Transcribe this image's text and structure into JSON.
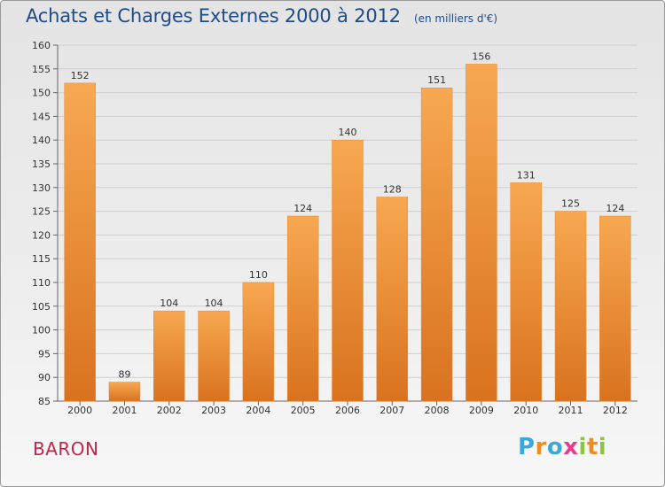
{
  "title": "Achats et Charges Externes 2000 à 2012",
  "subtitle": "(en milliers d'€)",
  "commune": "BARON",
  "logo": {
    "text": "Proxiti",
    "letter_colors": [
      "#3aa8d8",
      "#f08c1e",
      "#3aa8d8",
      "#e83b8a",
      "#8cc63f",
      "#f08c1e",
      "#8cc63f"
    ]
  },
  "colors": {
    "title": "#1f4b86",
    "commune": "#c0264a",
    "bar_light": "#f7a851",
    "bar_dark": "#d9721f",
    "axis": "#666666",
    "grid": "#cfcfcf"
  },
  "chart_data": {
    "type": "bar",
    "title": "Achats et Charges Externes 2000 à 2012",
    "subtitle": "(en milliers d'€)",
    "categories": [
      "2000",
      "2001",
      "2002",
      "2003",
      "2004",
      "2005",
      "2006",
      "2007",
      "2008",
      "2009",
      "2010",
      "2011",
      "2012"
    ],
    "values": [
      152,
      89,
      104,
      104,
      110,
      124,
      140,
      128,
      151,
      156,
      131,
      125,
      124
    ],
    "ylim": [
      85,
      160
    ],
    "yticks": [
      85,
      90,
      95,
      100,
      105,
      110,
      115,
      120,
      125,
      130,
      135,
      140,
      145,
      150,
      155,
      160
    ],
    "grid": true,
    "data_labels": true,
    "legend": "none"
  }
}
